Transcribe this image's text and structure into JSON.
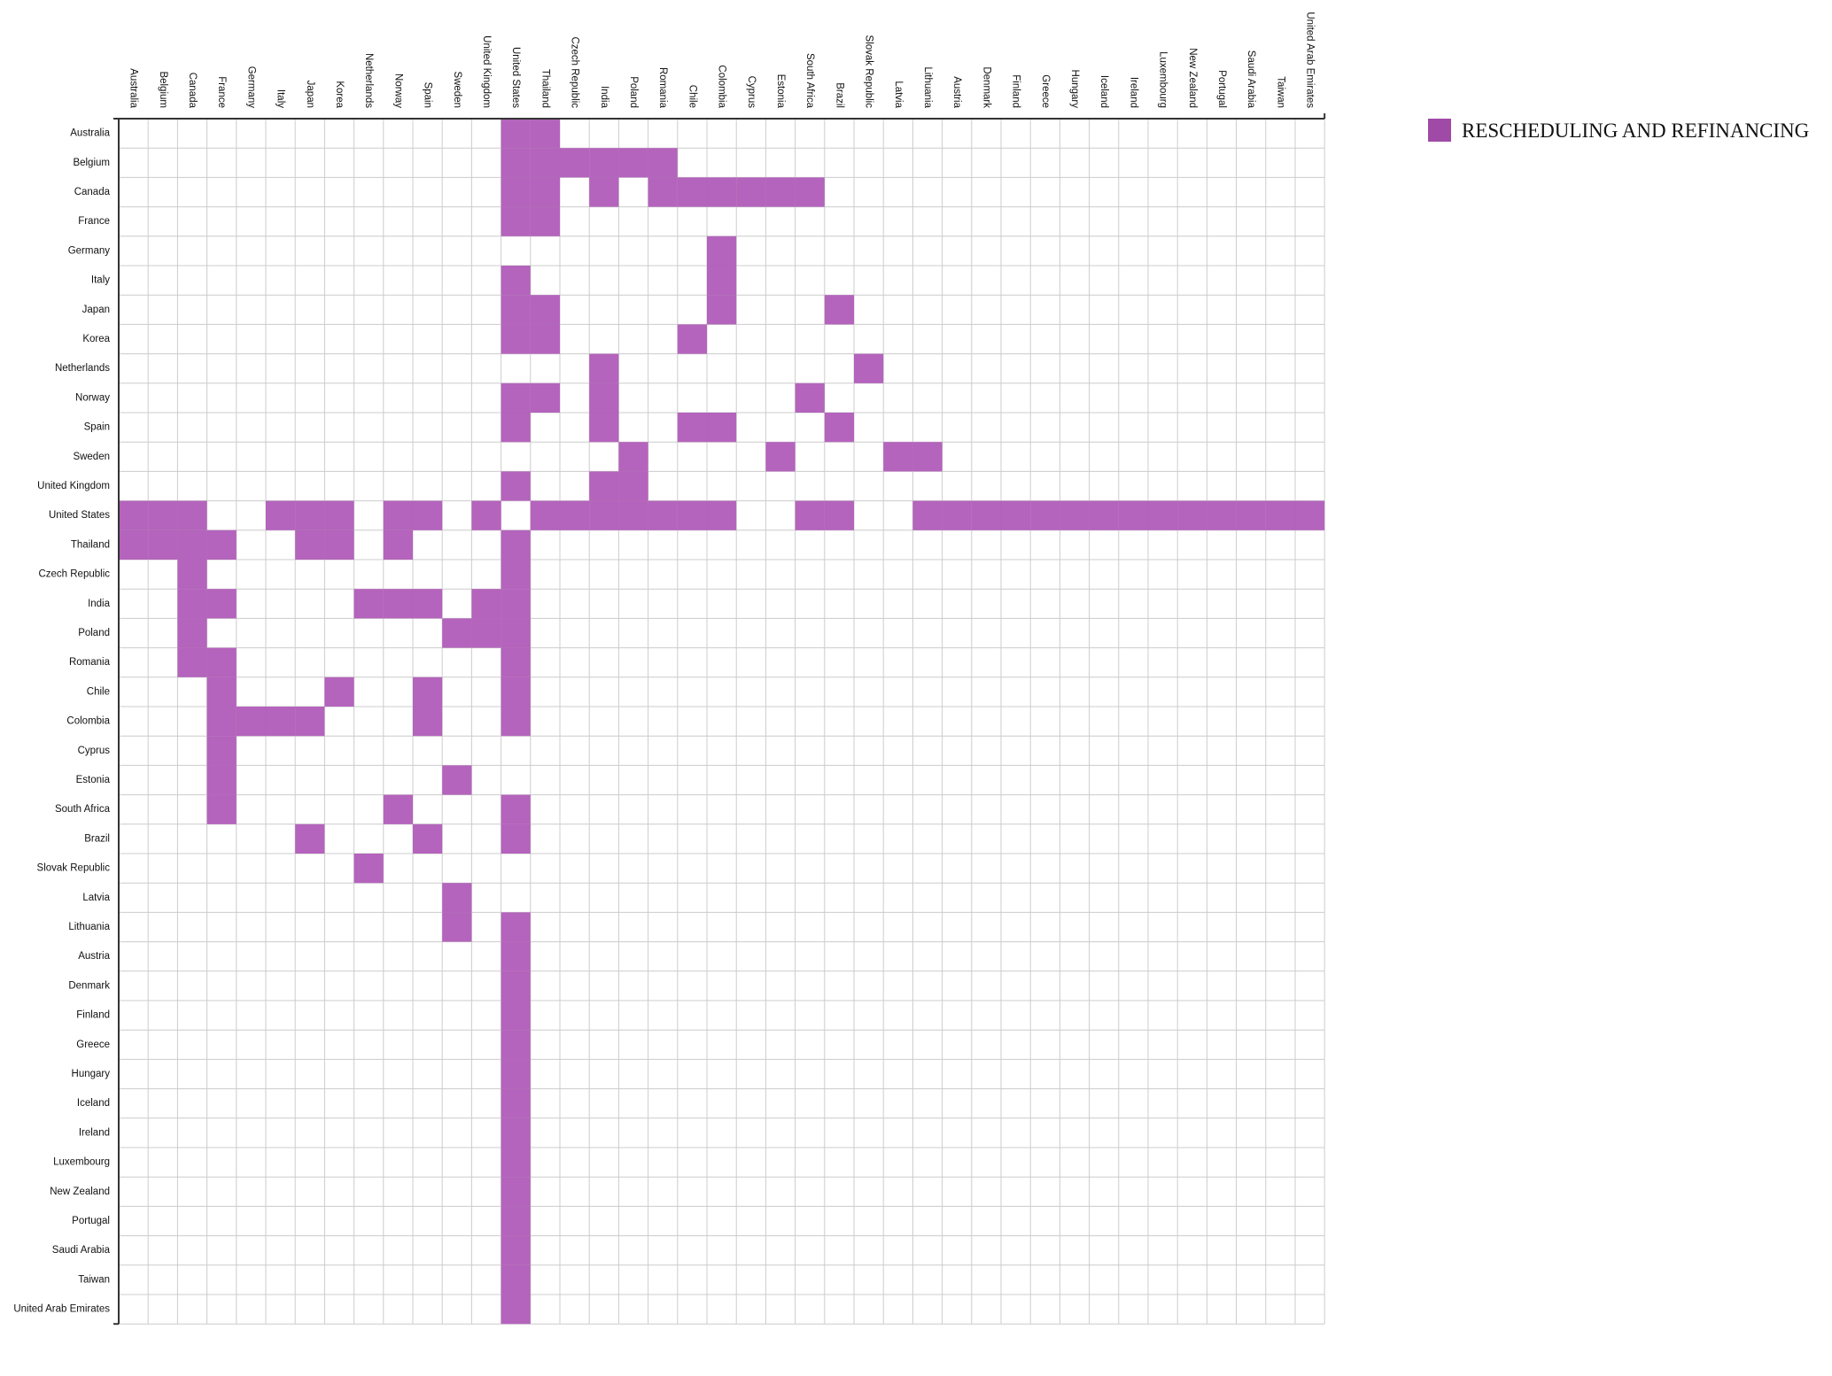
{
  "chart_data": {
    "type": "heatmap",
    "title": "",
    "xlabel": "",
    "ylabel": "",
    "grid": true,
    "legend_position": "top-right",
    "colors": {
      "cell": "#b05cb8",
      "legend_swatch": "#9e4aa6",
      "grid": "#cccccc",
      "axis": "#333333"
    },
    "x_categories": [
      "Australia",
      "Belgium",
      "Canada",
      "France",
      "Germany",
      "Italy",
      "Japan",
      "Korea",
      "Netherlands",
      "Norway",
      "Spain",
      "Sweden",
      "United Kingdom",
      "United States",
      "Thailand",
      "Czech Republic",
      "India",
      "Poland",
      "Romania",
      "Chile",
      "Colombia",
      "Cyprus",
      "Estonia",
      "South Africa",
      "Brazil",
      "Slovak Republic",
      "Latvia",
      "Lithuania",
      "Austria",
      "Denmark",
      "Finland",
      "Greece",
      "Hungary",
      "Iceland",
      "Ireland",
      "Luxembourg",
      "New Zealand",
      "Portugal",
      "Saudi Arabia",
      "Taiwan",
      "United Arab Emirates"
    ],
    "y_categories": [
      "Australia",
      "Belgium",
      "Canada",
      "France",
      "Germany",
      "Italy",
      "Japan",
      "Korea",
      "Netherlands",
      "Norway",
      "Spain",
      "Sweden",
      "United Kingdom",
      "United States",
      "Thailand",
      "Czech Republic",
      "India",
      "Poland",
      "Romania",
      "Chile",
      "Colombia",
      "Cyprus",
      "Estonia",
      "South Africa",
      "Brazil",
      "Slovak Republic",
      "Latvia",
      "Lithuania",
      "Austria",
      "Denmark",
      "Finland",
      "Greece",
      "Hungary",
      "Iceland",
      "Ireland",
      "Luxembourg",
      "New Zealand",
      "Portugal",
      "Saudi Arabia",
      "Taiwan",
      "United Arab Emirates"
    ],
    "series": [
      {
        "name": "RESCHEDULING AND REFINANCING",
        "cells": [
          [
            "United States",
            "Australia"
          ],
          [
            "Thailand",
            "Australia"
          ],
          [
            "United States",
            "Belgium"
          ],
          [
            "Thailand",
            "Belgium"
          ],
          [
            "Czech Republic",
            "Belgium"
          ],
          [
            "India",
            "Belgium"
          ],
          [
            "Poland",
            "Belgium"
          ],
          [
            "Romania",
            "Belgium"
          ],
          [
            "United States",
            "Canada"
          ],
          [
            "Thailand",
            "Canada"
          ],
          [
            "India",
            "Canada"
          ],
          [
            "Romania",
            "Canada"
          ],
          [
            "Chile",
            "Canada"
          ],
          [
            "Colombia",
            "Canada"
          ],
          [
            "Cyprus",
            "Canada"
          ],
          [
            "Estonia",
            "Canada"
          ],
          [
            "South Africa",
            "Canada"
          ],
          [
            "United States",
            "France"
          ],
          [
            "Thailand",
            "France"
          ],
          [
            "Colombia",
            "Germany"
          ],
          [
            "United States",
            "Italy"
          ],
          [
            "Colombia",
            "Italy"
          ],
          [
            "United States",
            "Japan"
          ],
          [
            "Thailand",
            "Japan"
          ],
          [
            "Colombia",
            "Japan"
          ],
          [
            "Brazil",
            "Japan"
          ],
          [
            "United States",
            "Korea"
          ],
          [
            "Thailand",
            "Korea"
          ],
          [
            "Chile",
            "Korea"
          ],
          [
            "India",
            "Netherlands"
          ],
          [
            "Slovak Republic",
            "Netherlands"
          ],
          [
            "United States",
            "Norway"
          ],
          [
            "Thailand",
            "Norway"
          ],
          [
            "India",
            "Norway"
          ],
          [
            "South Africa",
            "Norway"
          ],
          [
            "United States",
            "Spain"
          ],
          [
            "India",
            "Spain"
          ],
          [
            "Chile",
            "Spain"
          ],
          [
            "Colombia",
            "Spain"
          ],
          [
            "Brazil",
            "Spain"
          ],
          [
            "Poland",
            "Sweden"
          ],
          [
            "Estonia",
            "Sweden"
          ],
          [
            "Latvia",
            "Sweden"
          ],
          [
            "Lithuania",
            "Sweden"
          ],
          [
            "United States",
            "United Kingdom"
          ],
          [
            "India",
            "United Kingdom"
          ],
          [
            "Poland",
            "United Kingdom"
          ],
          [
            "Australia",
            "United States"
          ],
          [
            "Belgium",
            "United States"
          ],
          [
            "Canada",
            "United States"
          ],
          [
            "Italy",
            "United States"
          ],
          [
            "Japan",
            "United States"
          ],
          [
            "Korea",
            "United States"
          ],
          [
            "Norway",
            "United States"
          ],
          [
            "Spain",
            "United States"
          ],
          [
            "United Kingdom",
            "United States"
          ],
          [
            "Thailand",
            "United States"
          ],
          [
            "Czech Republic",
            "United States"
          ],
          [
            "India",
            "United States"
          ],
          [
            "Poland",
            "United States"
          ],
          [
            "Romania",
            "United States"
          ],
          [
            "Chile",
            "United States"
          ],
          [
            "Colombia",
            "United States"
          ],
          [
            "South Africa",
            "United States"
          ],
          [
            "Brazil",
            "United States"
          ],
          [
            "Lithuania",
            "United States"
          ],
          [
            "Austria",
            "United States"
          ],
          [
            "Denmark",
            "United States"
          ],
          [
            "Finland",
            "United States"
          ],
          [
            "Greece",
            "United States"
          ],
          [
            "Hungary",
            "United States"
          ],
          [
            "Iceland",
            "United States"
          ],
          [
            "Ireland",
            "United States"
          ],
          [
            "Luxembourg",
            "United States"
          ],
          [
            "New Zealand",
            "United States"
          ],
          [
            "Portugal",
            "United States"
          ],
          [
            "Saudi Arabia",
            "United States"
          ],
          [
            "Taiwan",
            "United States"
          ],
          [
            "United Arab Emirates",
            "United States"
          ],
          [
            "Australia",
            "Thailand"
          ],
          [
            "Belgium",
            "Thailand"
          ],
          [
            "Canada",
            "Thailand"
          ],
          [
            "France",
            "Thailand"
          ],
          [
            "Japan",
            "Thailand"
          ],
          [
            "Korea",
            "Thailand"
          ],
          [
            "Norway",
            "Thailand"
          ],
          [
            "United States",
            "Thailand"
          ],
          [
            "Canada",
            "Czech Republic"
          ],
          [
            "United States",
            "Czech Republic"
          ],
          [
            "Canada",
            "India"
          ],
          [
            "France",
            "India"
          ],
          [
            "Netherlands",
            "India"
          ],
          [
            "Norway",
            "India"
          ],
          [
            "Spain",
            "India"
          ],
          [
            "United Kingdom",
            "India"
          ],
          [
            "United States",
            "India"
          ],
          [
            "Canada",
            "Poland"
          ],
          [
            "Sweden",
            "Poland"
          ],
          [
            "United Kingdom",
            "Poland"
          ],
          [
            "United States",
            "Poland"
          ],
          [
            "Canada",
            "Romania"
          ],
          [
            "France",
            "Romania"
          ],
          [
            "United States",
            "Romania"
          ],
          [
            "France",
            "Chile"
          ],
          [
            "Korea",
            "Chile"
          ],
          [
            "Spain",
            "Chile"
          ],
          [
            "United States",
            "Chile"
          ],
          [
            "France",
            "Colombia"
          ],
          [
            "Germany",
            "Colombia"
          ],
          [
            "Italy",
            "Colombia"
          ],
          [
            "Japan",
            "Colombia"
          ],
          [
            "Spain",
            "Colombia"
          ],
          [
            "United States",
            "Colombia"
          ],
          [
            "France",
            "Cyprus"
          ],
          [
            "France",
            "Estonia"
          ],
          [
            "Sweden",
            "Estonia"
          ],
          [
            "France",
            "South Africa"
          ],
          [
            "Norway",
            "South Africa"
          ],
          [
            "United States",
            "South Africa"
          ],
          [
            "Japan",
            "Brazil"
          ],
          [
            "Spain",
            "Brazil"
          ],
          [
            "United States",
            "Brazil"
          ],
          [
            "Netherlands",
            "Slovak Republic"
          ],
          [
            "Sweden",
            "Latvia"
          ],
          [
            "Sweden",
            "Lithuania"
          ],
          [
            "United States",
            "Lithuania"
          ],
          [
            "United States",
            "Austria"
          ],
          [
            "United States",
            "Denmark"
          ],
          [
            "United States",
            "Finland"
          ],
          [
            "United States",
            "Greece"
          ],
          [
            "United States",
            "Hungary"
          ],
          [
            "United States",
            "Iceland"
          ],
          [
            "United States",
            "Ireland"
          ],
          [
            "United States",
            "Luxembourg"
          ],
          [
            "United States",
            "New Zealand"
          ],
          [
            "United States",
            "Portugal"
          ],
          [
            "United States",
            "Saudi Arabia"
          ],
          [
            "United States",
            "Taiwan"
          ],
          [
            "United States",
            "United Arab Emirates"
          ]
        ]
      }
    ]
  }
}
